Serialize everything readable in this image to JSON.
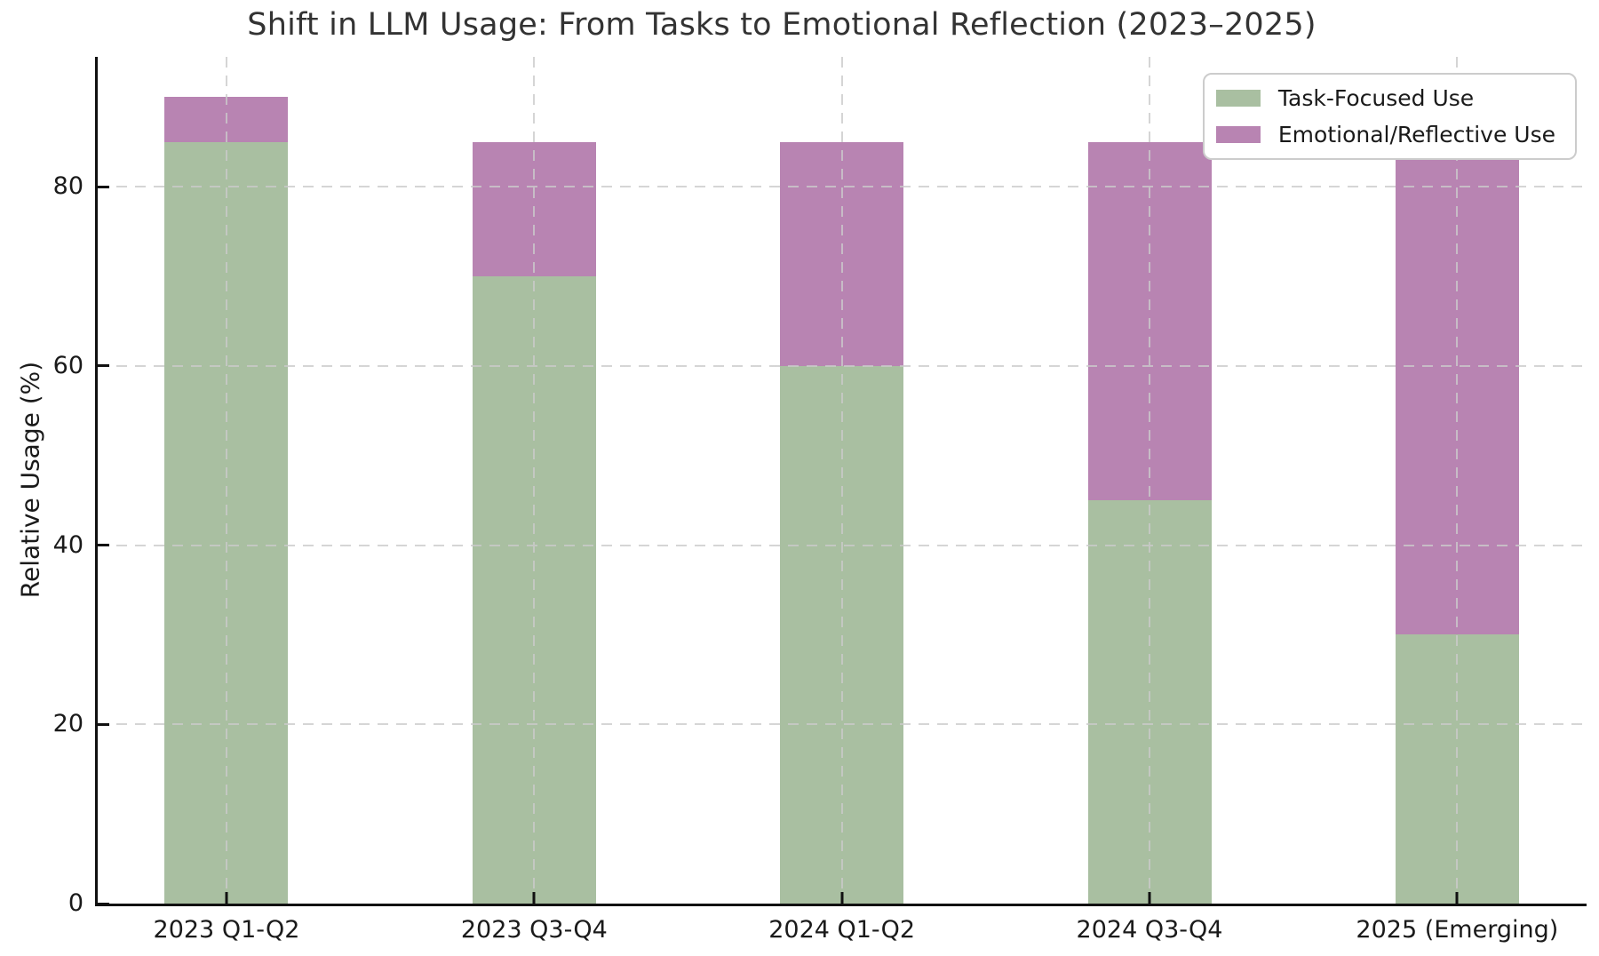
{
  "chart_data": {
    "type": "bar",
    "stacked": true,
    "title": "Shift in LLM Usage: From Tasks to Emotional Reflection (2023–2025)",
    "xlabel": "",
    "ylabel": "Relative Usage (%)",
    "categories": [
      "2023 Q1-Q2",
      "2023 Q3-Q4",
      "2024 Q1-Q2",
      "2024 Q3-Q4",
      "2025 (Emerging)"
    ],
    "series": [
      {
        "name": "Task-Focused Use",
        "values": [
          85,
          70,
          60,
          45,
          30
        ],
        "color": "#a9bfa1"
      },
      {
        "name": "Emotional/Reflective Use",
        "values": [
          5,
          15,
          25,
          40,
          55
        ],
        "color": "#b884b2"
      }
    ],
    "stack_totals": [
      90,
      85,
      85,
      85,
      85
    ],
    "ylim": [
      0,
      94.5
    ],
    "yticks": [
      0,
      20,
      40,
      60,
      80
    ],
    "grid": true,
    "grid_style": "dashed",
    "legend_position": "upper right"
  },
  "legend": {
    "items": [
      {
        "label": "Task-Focused Use"
      },
      {
        "label": "Emotional/Reflective Use"
      }
    ]
  },
  "colors": {
    "task_green": "#a9bfa1",
    "emotional_purple": "#b884b2",
    "grid": "#cbcbcb",
    "spine": "#111111",
    "tick_text": "#1a1a1a",
    "title_text": "#333333",
    "legend_border": "#cccccc",
    "background": "#ffffff"
  }
}
